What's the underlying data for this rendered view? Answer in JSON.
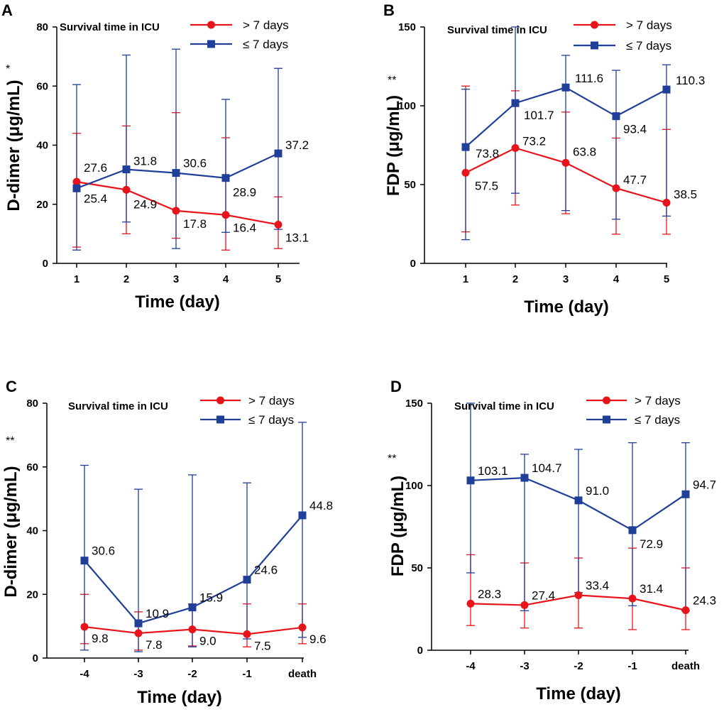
{
  "colors": {
    "over7": "#e8141b",
    "under7": "#1f3f99",
    "axis": "#000000"
  },
  "chart_data": [
    {
      "panel": "A",
      "type": "line",
      "ylabel": "D-dimer (μg/mL)",
      "xlabel": "Time (day)",
      "significance": "*",
      "legend_title": "Survival time in ICU",
      "categories": [
        "1",
        "2",
        "3",
        "4",
        "5"
      ],
      "ylim": [
        0,
        80
      ],
      "yticks": [
        0,
        20,
        40,
        60,
        80
      ],
      "series": [
        {
          "name": "> 7 days",
          "values": [
            27.6,
            24.9,
            17.8,
            16.4,
            13.1
          ],
          "labels": [
            "27.6",
            "24.9",
            "17.8",
            "16.4",
            "13.1"
          ],
          "err_low": [
            5.5,
            10.0,
            8.5,
            4.5,
            5.0
          ],
          "err_high": [
            44.0,
            46.5,
            51.0,
            42.5,
            22.5
          ]
        },
        {
          "name": "≤ 7 days",
          "values": [
            25.4,
            31.8,
            30.6,
            28.9,
            37.2
          ],
          "labels": [
            "25.4",
            "31.8",
            "30.6",
            "28.9",
            "37.2"
          ],
          "err_low": [
            4.5,
            14.0,
            5.0,
            10.5,
            11.5
          ],
          "err_high": [
            60.5,
            70.5,
            72.5,
            55.5,
            66.0
          ]
        }
      ]
    },
    {
      "panel": "B",
      "type": "line",
      "ylabel": "FDP (μg/mL)",
      "xlabel": "Time (day)",
      "significance": "**",
      "legend_title": "Survival time in ICU",
      "categories": [
        "1",
        "2",
        "3",
        "4",
        "5"
      ],
      "ylim": [
        0,
        150
      ],
      "yticks": [
        0,
        50,
        100,
        150
      ],
      "series": [
        {
          "name": "> 7 days",
          "values": [
            57.5,
            73.2,
            63.8,
            47.7,
            38.5
          ],
          "labels": [
            "57.5",
            "73.2",
            "63.8",
            "47.7",
            "38.5"
          ],
          "err_low": [
            20.0,
            37.0,
            31.5,
            18.5,
            18.5
          ],
          "err_high": [
            112.5,
            109.5,
            96.0,
            79.5,
            85.0
          ]
        },
        {
          "name": "≤ 7 days",
          "values": [
            73.8,
            101.7,
            111.6,
            93.4,
            110.3
          ],
          "labels": [
            "73.8",
            "101.7",
            "111.6",
            "93.4",
            "110.3"
          ],
          "err_low": [
            15.0,
            44.5,
            33.5,
            28.0,
            30.0
          ],
          "err_high": [
            110.5,
            150.0,
            132.0,
            122.5,
            126.0
          ]
        }
      ]
    },
    {
      "panel": "C",
      "type": "line",
      "ylabel": "D-dimer (μg/mL)",
      "xlabel": "Time (day)",
      "significance": "**",
      "legend_title": "Survival time in ICU",
      "categories": [
        "-4",
        "-3",
        "-2",
        "-1",
        "death"
      ],
      "ylim": [
        0,
        80
      ],
      "yticks": [
        0,
        20,
        40,
        60,
        80
      ],
      "series": [
        {
          "name": "> 7 days",
          "values": [
            9.8,
            7.8,
            9.0,
            7.5,
            9.6
          ],
          "labels": [
            "9.8",
            "7.8",
            "9.0",
            "7.5",
            "9.6"
          ],
          "err_low": [
            4.5,
            2.5,
            3.8,
            3.5,
            4.5
          ],
          "err_high": [
            20.0,
            14.5,
            17.0,
            17.0,
            17.0
          ]
        },
        {
          "name": "≤ 7 days",
          "values": [
            30.6,
            10.9,
            15.9,
            24.6,
            44.8
          ],
          "labels": [
            "30.6",
            "10.9",
            "15.9",
            "24.6",
            "44.8"
          ],
          "err_low": [
            2.5,
            2.0,
            3.5,
            6.0,
            6.5
          ],
          "err_high": [
            60.5,
            53.0,
            57.5,
            55.0,
            74.0
          ]
        }
      ]
    },
    {
      "panel": "D",
      "type": "line",
      "ylabel": "FDP (μg/mL)",
      "xlabel": "Time (day)",
      "significance": "**",
      "legend_title": "Survival time in ICU",
      "categories": [
        "-4",
        "-3",
        "-2",
        "-1",
        "death"
      ],
      "ylim": [
        0,
        150
      ],
      "yticks": [
        0,
        50,
        100,
        150
      ],
      "series": [
        {
          "name": "> 7 days",
          "values": [
            28.3,
            27.4,
            33.4,
            31.4,
            24.3
          ],
          "labels": [
            "28.3",
            "27.4",
            "33.4",
            "31.4",
            "24.3"
          ],
          "err_low": [
            15.0,
            13.5,
            13.5,
            12.5,
            12.5
          ],
          "err_high": [
            58.0,
            53.0,
            56.0,
            62.0,
            50.0
          ]
        },
        {
          "name": "≤ 7 days",
          "values": [
            103.1,
            104.7,
            91.0,
            72.9,
            94.7
          ],
          "labels": [
            "103.1",
            "104.7",
            "91.0",
            "72.9",
            "94.7"
          ],
          "err_low": [
            47.0,
            24.0,
            35.0,
            27.0,
            24.0
          ],
          "err_high": [
            150.0,
            119.0,
            122.0,
            126.0,
            126.0
          ]
        }
      ]
    }
  ]
}
